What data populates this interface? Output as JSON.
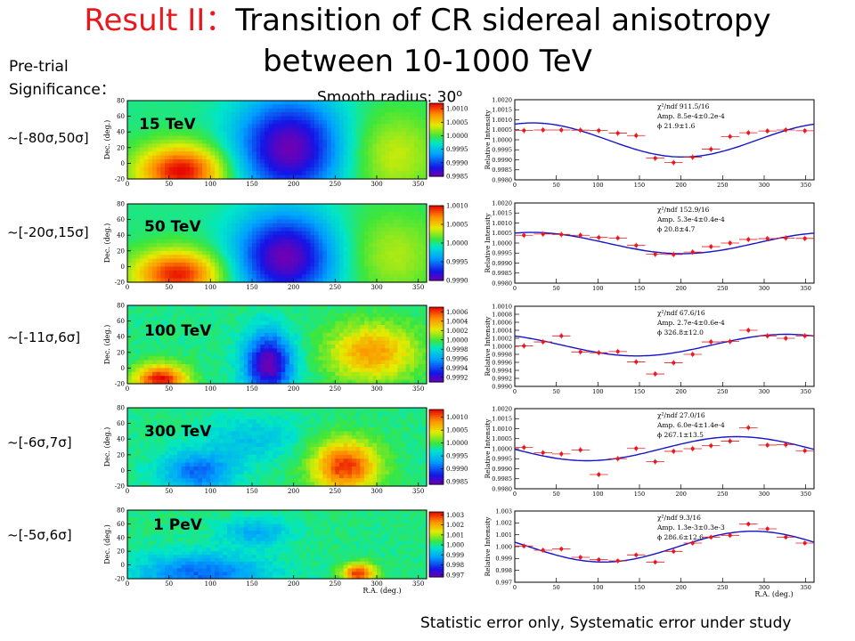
{
  "slide": {
    "title_prefix": "Result II：",
    "title_line1": "Transition of CR sidereal anisotropy",
    "title_line2": "between 10-1000 TeV",
    "pretrial_line1": "Pre-trial",
    "pretrial_line2": "Significance：",
    "smooth_label": "Smooth radius: 30",
    "smooth_unit": "o",
    "footer": "Statistic error only, Systematic error under study"
  },
  "colors": {
    "title_accent": "#e8191e",
    "fit_line": "#1414c8",
    "data_points": "#e8191e"
  },
  "chart_data": [
    {
      "type": "heatmap",
      "energy": "15 TeV",
      "significance": "~[-80σ,50σ]",
      "ylabel": "Dec. (deg.)",
      "xlim": [
        0,
        360
      ],
      "ylim": [
        -20,
        80
      ],
      "x_ticks": [
        "0",
        "50",
        "100",
        "150",
        "200",
        "250",
        "300",
        "350"
      ],
      "y_ticks": [
        "-20",
        "0",
        "20",
        "40",
        "60",
        "80"
      ],
      "colorbar_ticks": [
        "1.0010",
        "1.0005",
        "1.0000",
        "0.9995",
        "0.9990",
        "0.9985"
      ],
      "colorbar_range": [
        0.9985,
        1.0012
      ],
      "blobs": [
        {
          "ra": 65,
          "dec": -10,
          "amp": 1.0,
          "sra": 38,
          "sdec": 24
        },
        {
          "ra": 195,
          "dec": 20,
          "amp": -1.0,
          "sra": 45,
          "sdec": 45
        },
        {
          "ra": 320,
          "dec": 10,
          "amp": 0.35,
          "sra": 40,
          "sdec": 40
        }
      ]
    },
    {
      "type": "scatter",
      "energy": "15 TeV",
      "ylabel": "Relative Intensity",
      "xlim": [
        0,
        360
      ],
      "ylim": [
        0.998,
        1.002
      ],
      "x_ticks": [
        "0",
        "50",
        "100",
        "150",
        "200",
        "250",
        "300",
        "350"
      ],
      "y_ticks": [
        "0.9980",
        "0.9985",
        "0.9990",
        "0.9995",
        "1.0000",
        "1.0005",
        "1.0010",
        "1.0015",
        "1.0020"
      ],
      "stats": [
        "χ²/ndf  911.5/16",
        "Amp.   8.5e-4±0.2e-4",
        "ϕ        21.9±1.6"
      ],
      "fit": {
        "offset": 0.99999,
        "amp": 0.00085,
        "phase": 21.9
      },
      "points": [
        {
          "x": 11,
          "y": 1.00046
        },
        {
          "x": 34,
          "y": 1.00049
        },
        {
          "x": 56,
          "y": 1.00049
        },
        {
          "x": 79,
          "y": 1.00048
        },
        {
          "x": 101,
          "y": 1.00046
        },
        {
          "x": 124,
          "y": 1.00033
        },
        {
          "x": 146,
          "y": 1.00021
        },
        {
          "x": 169,
          "y": 0.99908
        },
        {
          "x": 191,
          "y": 0.99886
        },
        {
          "x": 214,
          "y": 0.99913
        },
        {
          "x": 236,
          "y": 0.99953
        },
        {
          "x": 259,
          "y": 1.00016
        },
        {
          "x": 281,
          "y": 1.00035
        },
        {
          "x": 304,
          "y": 1.00044
        },
        {
          "x": 326,
          "y": 1.00049
        },
        {
          "x": 349,
          "y": 1.00045
        }
      ]
    },
    {
      "type": "heatmap",
      "energy": "50 TeV",
      "significance": "~[-20σ,15σ]",
      "ylabel": "Dec. (deg.)",
      "xlim": [
        0,
        360
      ],
      "ylim": [
        -20,
        80
      ],
      "x_ticks": [
        "0",
        "50",
        "100",
        "150",
        "200",
        "250",
        "300",
        "350"
      ],
      "y_ticks": [
        "-20",
        "0",
        "20",
        "40",
        "60",
        "80"
      ],
      "colorbar_ticks": [
        "1.0010",
        "1.0005",
        "1.0000",
        "0.9995",
        "0.9990"
      ],
      "colorbar_range": [
        0.999,
        1.001
      ],
      "blobs": [
        {
          "ra": 60,
          "dec": -10,
          "amp": 0.95,
          "sra": 38,
          "sdec": 22
        },
        {
          "ra": 190,
          "dec": 12,
          "amp": -1.0,
          "sra": 42,
          "sdec": 40
        },
        {
          "ra": 320,
          "dec": 15,
          "amp": 0.3,
          "sra": 40,
          "sdec": 40
        }
      ]
    },
    {
      "type": "scatter",
      "energy": "50 TeV",
      "ylabel": "Relative Intensity",
      "xlim": [
        0,
        360
      ],
      "ylim": [
        0.998,
        1.002
      ],
      "x_ticks": [
        "0",
        "50",
        "100",
        "150",
        "200",
        "250",
        "300",
        "350"
      ],
      "y_ticks": [
        "0.9980",
        "0.9985",
        "0.9990",
        "0.9995",
        "1.0000",
        "1.0005",
        "1.0010",
        "1.0015",
        "1.0020"
      ],
      "stats": [
        "χ²/ndf  152.9/16",
        "Amp.   5.3e-4±0.4e-4",
        "ϕ        20.8±4.7"
      ],
      "fit": {
        "offset": 1.0,
        "amp": 0.00053,
        "phase": 20.8
      },
      "points": [
        {
          "x": 11,
          "y": 1.00039
        },
        {
          "x": 34,
          "y": 1.00045
        },
        {
          "x": 56,
          "y": 1.00043
        },
        {
          "x": 79,
          "y": 1.00039
        },
        {
          "x": 101,
          "y": 1.00028
        },
        {
          "x": 124,
          "y": 1.00025
        },
        {
          "x": 146,
          "y": 0.99988
        },
        {
          "x": 169,
          "y": 0.99944
        },
        {
          "x": 191,
          "y": 0.99943
        },
        {
          "x": 214,
          "y": 0.99955
        },
        {
          "x": 236,
          "y": 0.99982
        },
        {
          "x": 259,
          "y": 1.0
        },
        {
          "x": 281,
          "y": 1.00018
        },
        {
          "x": 304,
          "y": 1.00022
        },
        {
          "x": 326,
          "y": 1.00025
        },
        {
          "x": 349,
          "y": 1.00023
        }
      ]
    },
    {
      "type": "heatmap",
      "energy": "100 TeV",
      "significance": "~[-11σ,6σ]",
      "ylabel": "Dec. (deg.)",
      "xlim": [
        0,
        360
      ],
      "ylim": [
        -20,
        80
      ],
      "x_ticks": [
        "0",
        "50",
        "100",
        "150",
        "200",
        "250",
        "300",
        "350"
      ],
      "y_ticks": [
        "-20",
        "0",
        "20",
        "40",
        "60",
        "80"
      ],
      "colorbar_ticks": [
        "1.0006",
        "1.0004",
        "1.0002",
        "1.0000",
        "0.9998",
        "0.9996",
        "0.9994",
        "0.9992"
      ],
      "colorbar_range": [
        0.9991,
        1.0007
      ],
      "blobs": [
        {
          "ra": 40,
          "dec": -15,
          "amp": 1.0,
          "sra": 22,
          "sdec": 14
        },
        {
          "ra": 170,
          "dec": 5,
          "amp": -1.0,
          "sra": 20,
          "sdec": 28
        },
        {
          "ra": 295,
          "dec": 20,
          "amp": 0.65,
          "sra": 38,
          "sdec": 26
        }
      ]
    },
    {
      "type": "scatter",
      "energy": "100 TeV",
      "ylabel": "Relative Intensity",
      "xlim": [
        0,
        360
      ],
      "ylim": [
        0.999,
        1.001
      ],
      "x_ticks": [
        "0",
        "50",
        "100",
        "150",
        "200",
        "250",
        "300",
        "350"
      ],
      "y_ticks": [
        "0.9990",
        "0.9992",
        "0.9994",
        "0.9996",
        "0.9998",
        "1.0000",
        "1.0002",
        "1.0004",
        "1.0006",
        "1.0008",
        "1.0010"
      ],
      "stats": [
        "χ²/ndf  67.6/16",
        "Amp.   2.7e-4±0.6e-4",
        "ϕ        326.8±12.0"
      ],
      "fit": {
        "offset": 1.00003,
        "amp": 0.00027,
        "phase": 326.8
      },
      "points": [
        {
          "x": 11,
          "y": 1.00001
        },
        {
          "x": 34,
          "y": 1.00011
        },
        {
          "x": 56,
          "y": 1.00026
        },
        {
          "x": 79,
          "y": 0.99986
        },
        {
          "x": 101,
          "y": 0.99984
        },
        {
          "x": 124,
          "y": 0.99987
        },
        {
          "x": 146,
          "y": 0.99961
        },
        {
          "x": 169,
          "y": 0.99931
        },
        {
          "x": 191,
          "y": 0.99959
        },
        {
          "x": 214,
          "y": 0.9998
        },
        {
          "x": 236,
          "y": 1.00011
        },
        {
          "x": 259,
          "y": 1.00012
        },
        {
          "x": 281,
          "y": 1.0004
        },
        {
          "x": 304,
          "y": 1.00026
        },
        {
          "x": 326,
          "y": 1.0002
        },
        {
          "x": 349,
          "y": 1.00026
        }
      ]
    },
    {
      "type": "heatmap",
      "energy": "300 TeV",
      "significance": "~[-6σ,7σ]",
      "ylabel": "Dec. (deg.)",
      "xlim": [
        0,
        360
      ],
      "ylim": [
        -20,
        80
      ],
      "x_ticks": [
        "0",
        "50",
        "100",
        "150",
        "200",
        "250",
        "300",
        "350"
      ],
      "y_ticks": [
        "-20",
        "0",
        "20",
        "40",
        "60",
        "80"
      ],
      "colorbar_ticks": [
        "1.0010",
        "1.0005",
        "1.0000",
        "0.9995",
        "0.9990",
        "0.9985"
      ],
      "colorbar_range": [
        0.9984,
        1.0013
      ],
      "blobs": [
        {
          "ra": 262,
          "dec": 5,
          "amp": 0.9,
          "sra": 28,
          "sdec": 24
        },
        {
          "ra": 85,
          "dec": -2,
          "amp": -0.55,
          "sra": 30,
          "sdec": 18
        },
        {
          "ra": 150,
          "dec": 40,
          "amp": -0.25,
          "sra": 40,
          "sdec": 20
        }
      ]
    },
    {
      "type": "scatter",
      "energy": "300 TeV",
      "ylabel": "Relative Intensity",
      "xlim": [
        0,
        360
      ],
      "ylim": [
        0.998,
        1.002
      ],
      "x_ticks": [
        "0",
        "50",
        "100",
        "150",
        "200",
        "250",
        "300",
        "350"
      ],
      "y_ticks": [
        "0.9980",
        "0.9985",
        "0.9990",
        "0.9995",
        "1.0000",
        "1.0005",
        "1.0010",
        "1.0015",
        "1.0020"
      ],
      "stats": [
        "χ²/ndf  27.0/16",
        "Amp.   6.0e-4±1.4e-4",
        "ϕ        267.1±13.5"
      ],
      "fit": {
        "offset": 1.0,
        "amp": 0.0006,
        "phase": 267.1
      },
      "points": [
        {
          "x": 11,
          "y": 1.00006
        },
        {
          "x": 34,
          "y": 0.9998
        },
        {
          "x": 56,
          "y": 0.99974
        },
        {
          "x": 79,
          "y": 0.99994
        },
        {
          "x": 101,
          "y": 0.99871
        },
        {
          "x": 124,
          "y": 0.9995
        },
        {
          "x": 146,
          "y": 1.00001
        },
        {
          "x": 169,
          "y": 0.99935
        },
        {
          "x": 191,
          "y": 0.99987
        },
        {
          "x": 214,
          "y": 1.0
        },
        {
          "x": 236,
          "y": 1.00015
        },
        {
          "x": 259,
          "y": 1.00038
        },
        {
          "x": 281,
          "y": 1.00105
        },
        {
          "x": 304,
          "y": 1.00018
        },
        {
          "x": 326,
          "y": 1.0002
        },
        {
          "x": 349,
          "y": 0.9999
        }
      ]
    },
    {
      "type": "heatmap",
      "energy": "1 PeV",
      "significance": "~[-5σ,6σ]",
      "ylabel": "Dec. (deg.)",
      "xlabel": "R.A. (deg.)",
      "xlim": [
        0,
        360
      ],
      "ylim": [
        -20,
        80
      ],
      "x_ticks": [
        "0",
        "50",
        "100",
        "150",
        "200",
        "250",
        "300",
        "350"
      ],
      "y_ticks": [
        "-20",
        "0",
        "20",
        "40",
        "60",
        "80"
      ],
      "colorbar_ticks": [
        "1.003",
        "1.002",
        "1.001",
        "1.000",
        "0.999",
        "0.998",
        "0.997"
      ],
      "colorbar_range": [
        0.9968,
        1.0033
      ],
      "blobs": [
        {
          "ra": 90,
          "dec": -12,
          "amp": -0.55,
          "sra": 55,
          "sdec": 20
        },
        {
          "ra": 278,
          "dec": -12,
          "amp": 0.9,
          "sra": 14,
          "sdec": 10
        },
        {
          "ra": 155,
          "dec": 48,
          "amp": -0.35,
          "sra": 28,
          "sdec": 14
        }
      ]
    },
    {
      "type": "scatter",
      "energy": "1 PeV",
      "ylabel": "Relative Intensity",
      "xlabel": "R.A. (deg.)",
      "xlim": [
        0,
        360
      ],
      "ylim": [
        0.997,
        1.003
      ],
      "x_ticks": [
        "0",
        "50",
        "100",
        "150",
        "200",
        "250",
        "300",
        "350"
      ],
      "y_ticks": [
        "0.997",
        "0.998",
        "0.999",
        "1.000",
        "1.001",
        "1.002",
        "1.003"
      ],
      "stats": [
        "χ²/ndf  9.3/16",
        "Amp.   1.3e-3±0.3e-3",
        "ϕ        286.6±12.6"
      ],
      "fit": {
        "offset": 1.0,
        "amp": 0.0013,
        "phase": 286.6
      },
      "points": [
        {
          "x": 11,
          "y": 1.00005
        },
        {
          "x": 34,
          "y": 0.9997
        },
        {
          "x": 56,
          "y": 0.9998
        },
        {
          "x": 79,
          "y": 0.9991
        },
        {
          "x": 101,
          "y": 0.9989
        },
        {
          "x": 124,
          "y": 0.9988
        },
        {
          "x": 146,
          "y": 0.9993
        },
        {
          "x": 169,
          "y": 0.9987
        },
        {
          "x": 191,
          "y": 0.9996
        },
        {
          "x": 214,
          "y": 1.0003
        },
        {
          "x": 236,
          "y": 1.0008
        },
        {
          "x": 259,
          "y": 1.00095
        },
        {
          "x": 281,
          "y": 1.0019
        },
        {
          "x": 304,
          "y": 1.0015
        },
        {
          "x": 326,
          "y": 1.0008
        },
        {
          "x": 349,
          "y": 1.0003
        }
      ]
    }
  ]
}
